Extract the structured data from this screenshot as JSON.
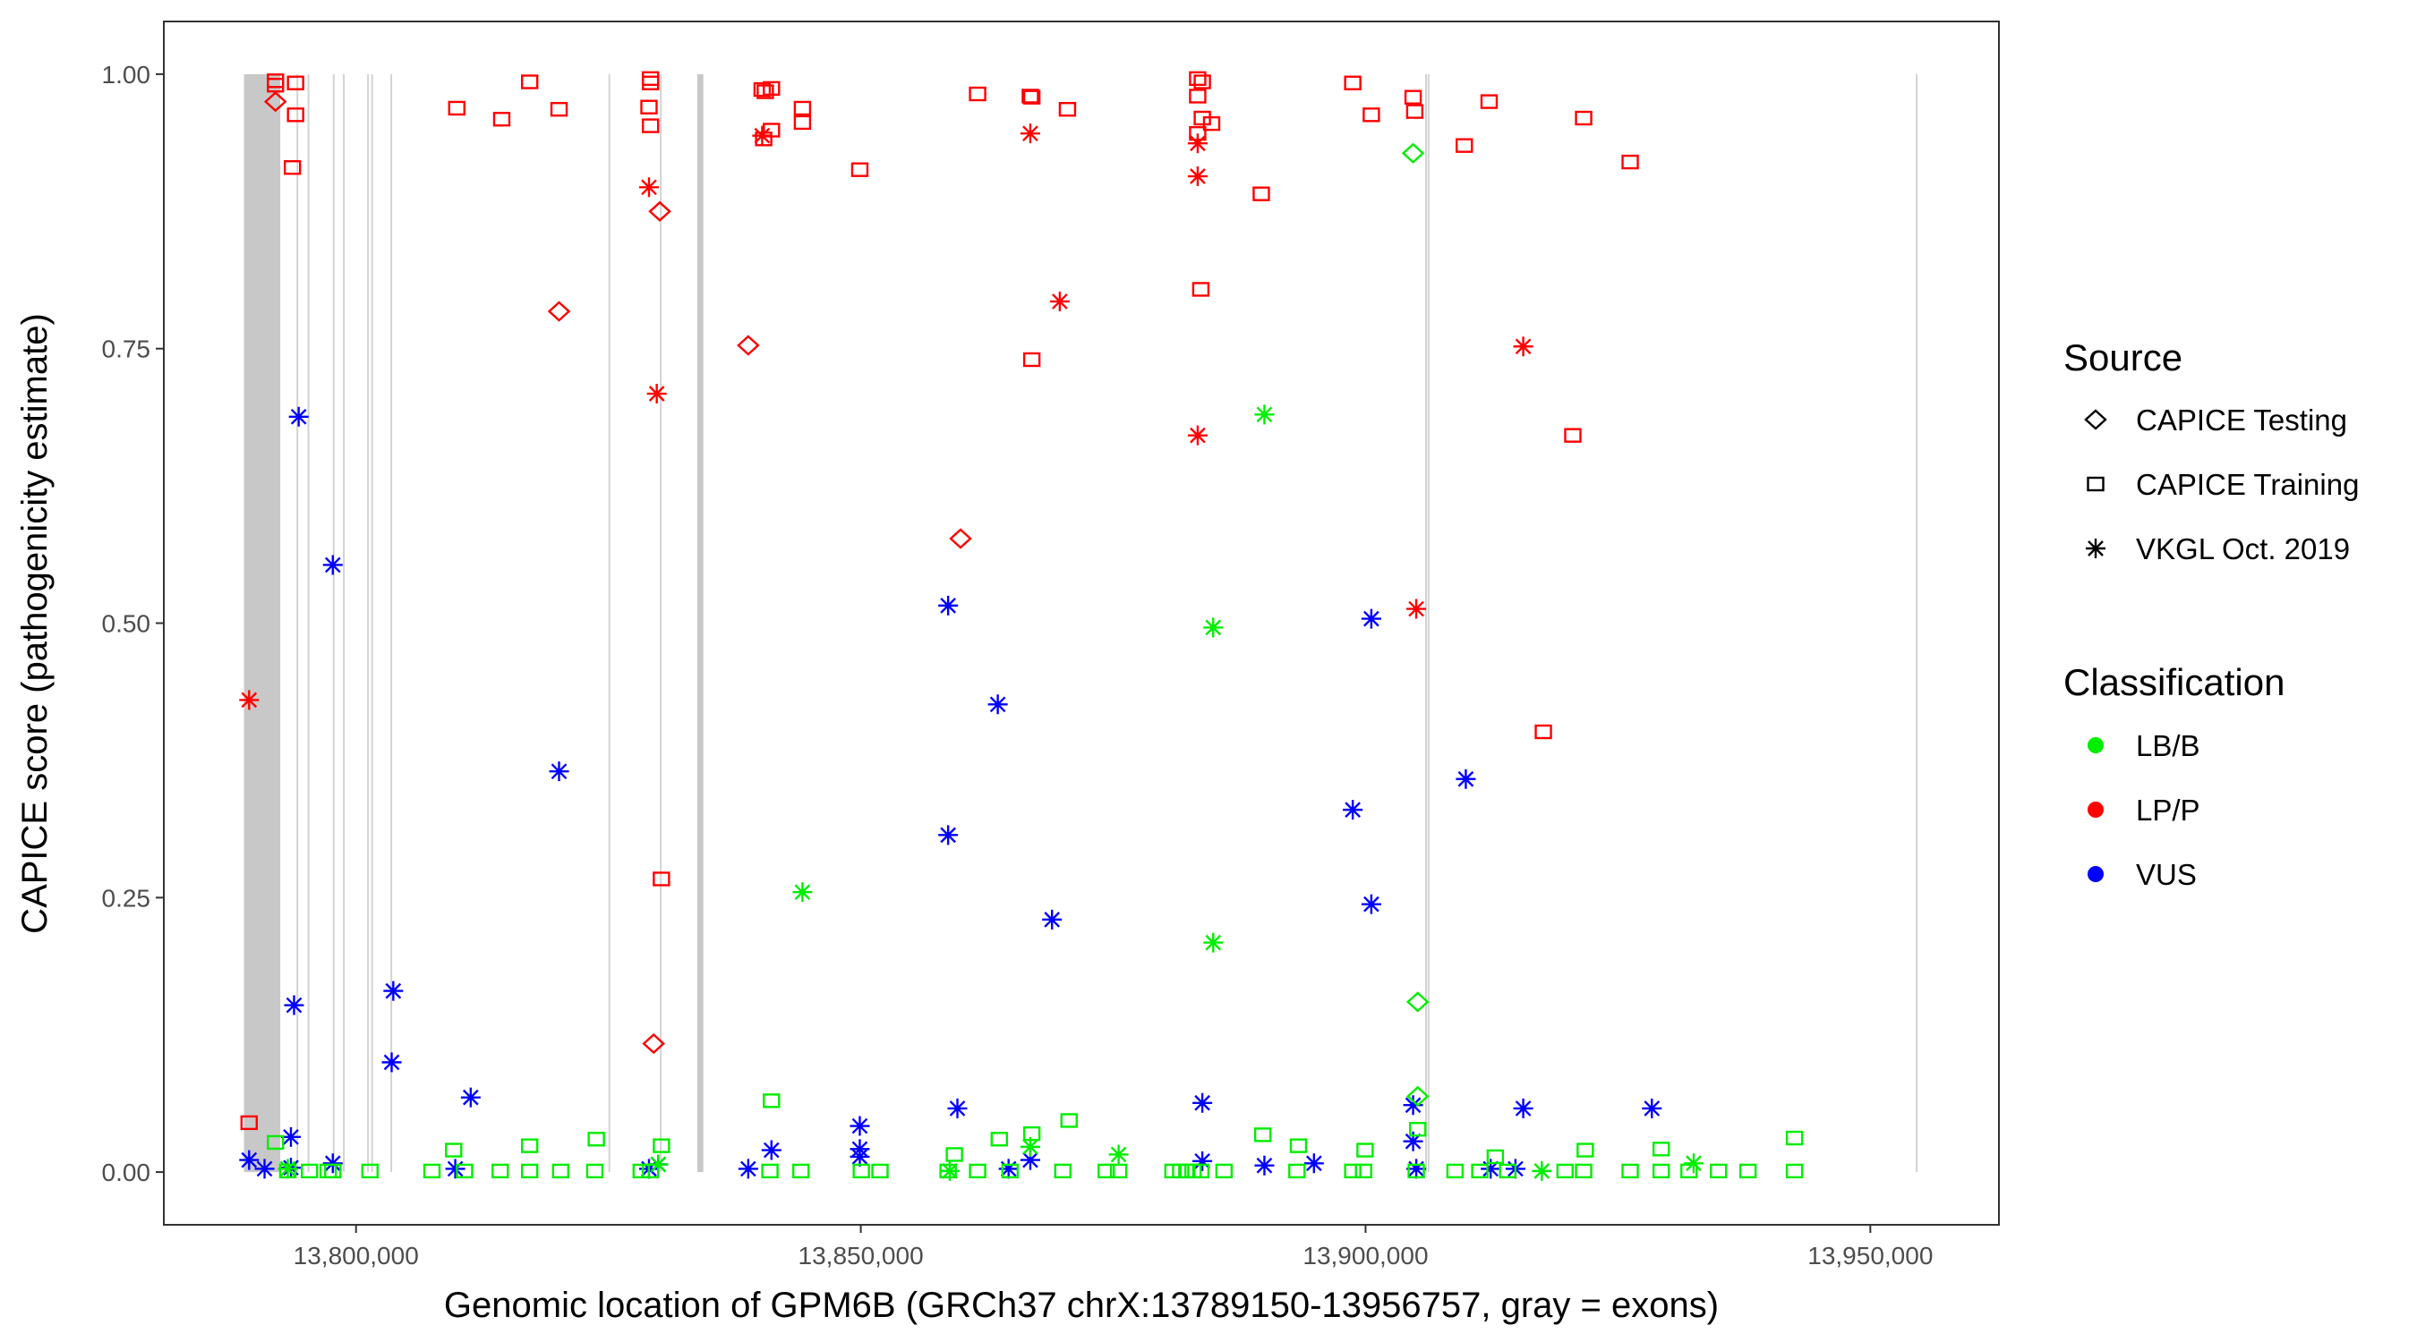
{
  "chart_data": {
    "type": "scatter",
    "title": "",
    "xlabel": "Genomic location of GPM6B (GRCh37 chrX:13789150-13956757, gray = exons)",
    "ylabel": "CAPICE score (pathogenicity estimate)",
    "xlim": [
      13780960,
      13962740
    ],
    "ylim": [
      -0.048,
      1.048
    ],
    "x_ticks": [
      13800000,
      13850000,
      13900000,
      13950000
    ],
    "x_tick_labels": [
      "13,800,000",
      "13,850,000",
      "13,900,000",
      "13,950,000"
    ],
    "y_ticks": [
      0,
      0.25,
      0.5,
      0.75,
      1.0
    ],
    "y_tick_labels": [
      "0.00",
      "0.25",
      "0.50",
      "0.75",
      "1.00"
    ],
    "grid": false,
    "legend_placement": "right",
    "exons": [
      [
        13788900,
        13792500
      ],
      [
        13794100,
        13794150
      ],
      [
        13795200,
        13795250
      ],
      [
        13797700,
        13797750
      ],
      [
        13798700,
        13798750
      ],
      [
        13801100,
        13801150
      ],
      [
        13801500,
        13801550
      ],
      [
        13803400,
        13803450
      ],
      [
        13825000,
        13825050
      ],
      [
        13830100,
        13830150
      ],
      [
        13833800,
        13834400
      ],
      [
        13905900,
        13905950
      ],
      [
        13906150,
        13906200
      ],
      [
        13954500,
        13954550
      ]
    ],
    "legend": {
      "source_title": "Source",
      "sources": [
        {
          "label": "CAPICE Testing",
          "shape": "diamond"
        },
        {
          "label": "CAPICE Training",
          "shape": "square"
        },
        {
          "label": "VKGL Oct. 2019",
          "shape": "asterisk"
        }
      ],
      "classification_title": "Classification",
      "classifications": [
        {
          "label": "LB/B",
          "color": "#00ee00"
        },
        {
          "label": "LP/P",
          "color": "#ff0000"
        },
        {
          "label": "VUS",
          "color": "#0000ff"
        }
      ]
    },
    "series": [
      {
        "source": "CAPICE Training",
        "classification": "LP/P",
        "points": [
          [
            13792020,
            0.994
          ],
          [
            13792020,
            0.99
          ],
          [
            13794010,
            0.992
          ],
          [
            13794010,
            0.963
          ],
          [
            13793700,
            0.915
          ],
          [
            13789410,
            0.045
          ],
          [
            13809980,
            0.969
          ],
          [
            13814430,
            0.959
          ],
          [
            13817200,
            0.993
          ],
          [
            13820110,
            0.968
          ],
          [
            13829170,
            0.996
          ],
          [
            13829170,
            0.992
          ],
          [
            13829020,
            0.97
          ],
          [
            13829170,
            0.953
          ],
          [
            13830250,
            0.267
          ],
          [
            13840230,
            0.986
          ],
          [
            13840540,
            0.984
          ],
          [
            13841150,
            0.987
          ],
          [
            13840380,
            0.941
          ],
          [
            13841150,
            0.949
          ],
          [
            13844220,
            0.969
          ],
          [
            13844220,
            0.956
          ],
          [
            13849900,
            0.913
          ],
          [
            13861570,
            0.982
          ],
          [
            13866790,
            0.98
          ],
          [
            13866940,
            0.979
          ],
          [
            13870470,
            0.968
          ],
          [
            13866940,
            0.74
          ],
          [
            13883370,
            0.996
          ],
          [
            13883830,
            0.993
          ],
          [
            13883370,
            0.98
          ],
          [
            13883830,
            0.96
          ],
          [
            13883370,
            0.946
          ],
          [
            13884750,
            0.955
          ],
          [
            13883680,
            0.804
          ],
          [
            13889670,
            0.891
          ],
          [
            13898730,
            0.992
          ],
          [
            13900570,
            0.963
          ],
          [
            13904710,
            0.979
          ],
          [
            13904870,
            0.966
          ],
          [
            13909780,
            0.935
          ],
          [
            13912240,
            0.975
          ],
          [
            13921600,
            0.96
          ],
          [
            13926210,
            0.92
          ],
          [
            13920530,
            0.671
          ],
          [
            13917610,
            0.401
          ]
        ]
      },
      {
        "source": "CAPICE Testing",
        "classification": "LP/P",
        "points": [
          [
            13792020,
            0.975
          ],
          [
            13830090,
            0.875
          ],
          [
            13820110,
            0.784
          ],
          [
            13838850,
            0.753
          ],
          [
            13829480,
            0.117
          ],
          [
            13859880,
            0.577
          ]
        ]
      },
      {
        "source": "VKGL Oct. 2019",
        "classification": "LP/P",
        "points": [
          [
            13789410,
            0.43
          ],
          [
            13829020,
            0.897
          ],
          [
            13840230,
            0.944
          ],
          [
            13829790,
            0.709
          ],
          [
            13866790,
            0.946
          ],
          [
            13869710,
            0.793
          ],
          [
            13883370,
            0.907
          ],
          [
            13883370,
            0.937
          ],
          [
            13883370,
            0.671
          ],
          [
            13905020,
            0.513
          ],
          [
            13915620,
            0.752
          ]
        ]
      },
      {
        "source": "VKGL Oct. 2019",
        "classification": "VUS",
        "points": [
          [
            13789410,
            0.011
          ],
          [
            13790940,
            0.003
          ],
          [
            13793550,
            0.004
          ],
          [
            13793550,
            0.032
          ],
          [
            13793860,
            0.152
          ],
          [
            13794320,
            0.688
          ],
          [
            13797700,
            0.553
          ],
          [
            13797700,
            0.008
          ],
          [
            13803690,
            0.165
          ],
          [
            13803530,
            0.1
          ],
          [
            13811360,
            0.068
          ],
          [
            13809830,
            0.003
          ],
          [
            13820110,
            0.365
          ],
          [
            13838850,
            0.003
          ],
          [
            13841150,
            0.02
          ],
          [
            13849900,
            0.042
          ],
          [
            13849900,
            0.021
          ],
          [
            13849900,
            0.014
          ],
          [
            13858650,
            0.516
          ],
          [
            13858650,
            0.307
          ],
          [
            13859570,
            0.058
          ],
          [
            13863570,
            0.426
          ],
          [
            13864640,
            0.003
          ],
          [
            13866790,
            0.011
          ],
          [
            13868940,
            0.23
          ],
          [
            13883830,
            0.01
          ],
          [
            13883830,
            0.063
          ],
          [
            13889980,
            0.006
          ],
          [
            13894890,
            0.008
          ],
          [
            13898730,
            0.33
          ],
          [
            13900570,
            0.504
          ],
          [
            13900570,
            0.244
          ],
          [
            13904710,
            0.061
          ],
          [
            13904710,
            0.028
          ],
          [
            13905020,
            0.003
          ],
          [
            13909930,
            0.358
          ],
          [
            13912390,
            0.003
          ],
          [
            13915620,
            0.058
          ],
          [
            13914850,
            0.003
          ],
          [
            13928360,
            0.058
          ],
          [
            13829940,
            0.007
          ],
          [
            13829020,
            0.003
          ]
        ]
      },
      {
        "source": "VKGL Oct. 2019",
        "classification": "LB/B",
        "points": [
          [
            13844220,
            0.255
          ],
          [
            13884910,
            0.496
          ],
          [
            13884910,
            0.209
          ],
          [
            13889980,
            0.69
          ],
          [
            13829940,
            0.007
          ],
          [
            13866790,
            0.023
          ],
          [
            13875540,
            0.016
          ],
          [
            13793240,
            0.003
          ],
          [
            13932500,
            0.008
          ],
          [
            13917460,
            0.001
          ],
          [
            13858810,
            0.001
          ]
        ]
      },
      {
        "source": "CAPICE Testing",
        "classification": "LB/B",
        "points": [
          [
            13904710,
            0.928
          ],
          [
            13905170,
            0.155
          ],
          [
            13905170,
            0.069
          ]
        ]
      },
      {
        "source": "CAPICE Training",
        "classification": "LB/B",
        "points": [
          [
            13792020,
            0.027
          ],
          [
            13809670,
            0.02
          ],
          [
            13817200,
            0.024
          ],
          [
            13823800,
            0.03
          ],
          [
            13830250,
            0.024
          ],
          [
            13841150,
            0.065
          ],
          [
            13859270,
            0.016
          ],
          [
            13863720,
            0.03
          ],
          [
            13866940,
            0.035
          ],
          [
            13870630,
            0.047
          ],
          [
            13889820,
            0.034
          ],
          [
            13893350,
            0.024
          ],
          [
            13899950,
            0.02
          ],
          [
            13905170,
            0.039
          ],
          [
            13912850,
            0.014
          ],
          [
            13921760,
            0.02
          ],
          [
            13929280,
            0.021
          ],
          [
            13942490,
            0.031
          ],
          [
            13793240,
            0.001
          ],
          [
            13795390,
            0.001
          ],
          [
            13797240,
            0.001
          ],
          [
            13797700,
            0.001
          ],
          [
            13801380,
            0.001
          ],
          [
            13807520,
            0.001
          ],
          [
            13810750,
            0.001
          ],
          [
            13814280,
            0.001
          ],
          [
            13817200,
            0.001
          ],
          [
            13820270,
            0.001
          ],
          [
            13823650,
            0.001
          ],
          [
            13828250,
            0.001
          ],
          [
            13829170,
            0.001
          ],
          [
            13841000,
            0.001
          ],
          [
            13844070,
            0.001
          ],
          [
            13850050,
            0.001
          ],
          [
            13851900,
            0.001
          ],
          [
            13858650,
            0.001
          ],
          [
            13861570,
            0.001
          ],
          [
            13864790,
            0.001
          ],
          [
            13870010,
            0.001
          ],
          [
            13874310,
            0.001
          ],
          [
            13875540,
            0.001
          ],
          [
            13880920,
            0.001
          ],
          [
            13881690,
            0.001
          ],
          [
            13882300,
            0.001
          ],
          [
            13882910,
            0.001
          ],
          [
            13883680,
            0.001
          ],
          [
            13885980,
            0.001
          ],
          [
            13893200,
            0.001
          ],
          [
            13898730,
            0.001
          ],
          [
            13899800,
            0.001
          ],
          [
            13905020,
            0.001
          ],
          [
            13908860,
            0.001
          ],
          [
            13911320,
            0.001
          ],
          [
            13914080,
            0.001
          ],
          [
            13919760,
            0.001
          ],
          [
            13921600,
            0.001
          ],
          [
            13926210,
            0.001
          ],
          [
            13929280,
            0.001
          ],
          [
            13932040,
            0.001
          ],
          [
            13934960,
            0.001
          ],
          [
            13937880,
            0.001
          ],
          [
            13942490,
            0.001
          ]
        ]
      }
    ]
  }
}
